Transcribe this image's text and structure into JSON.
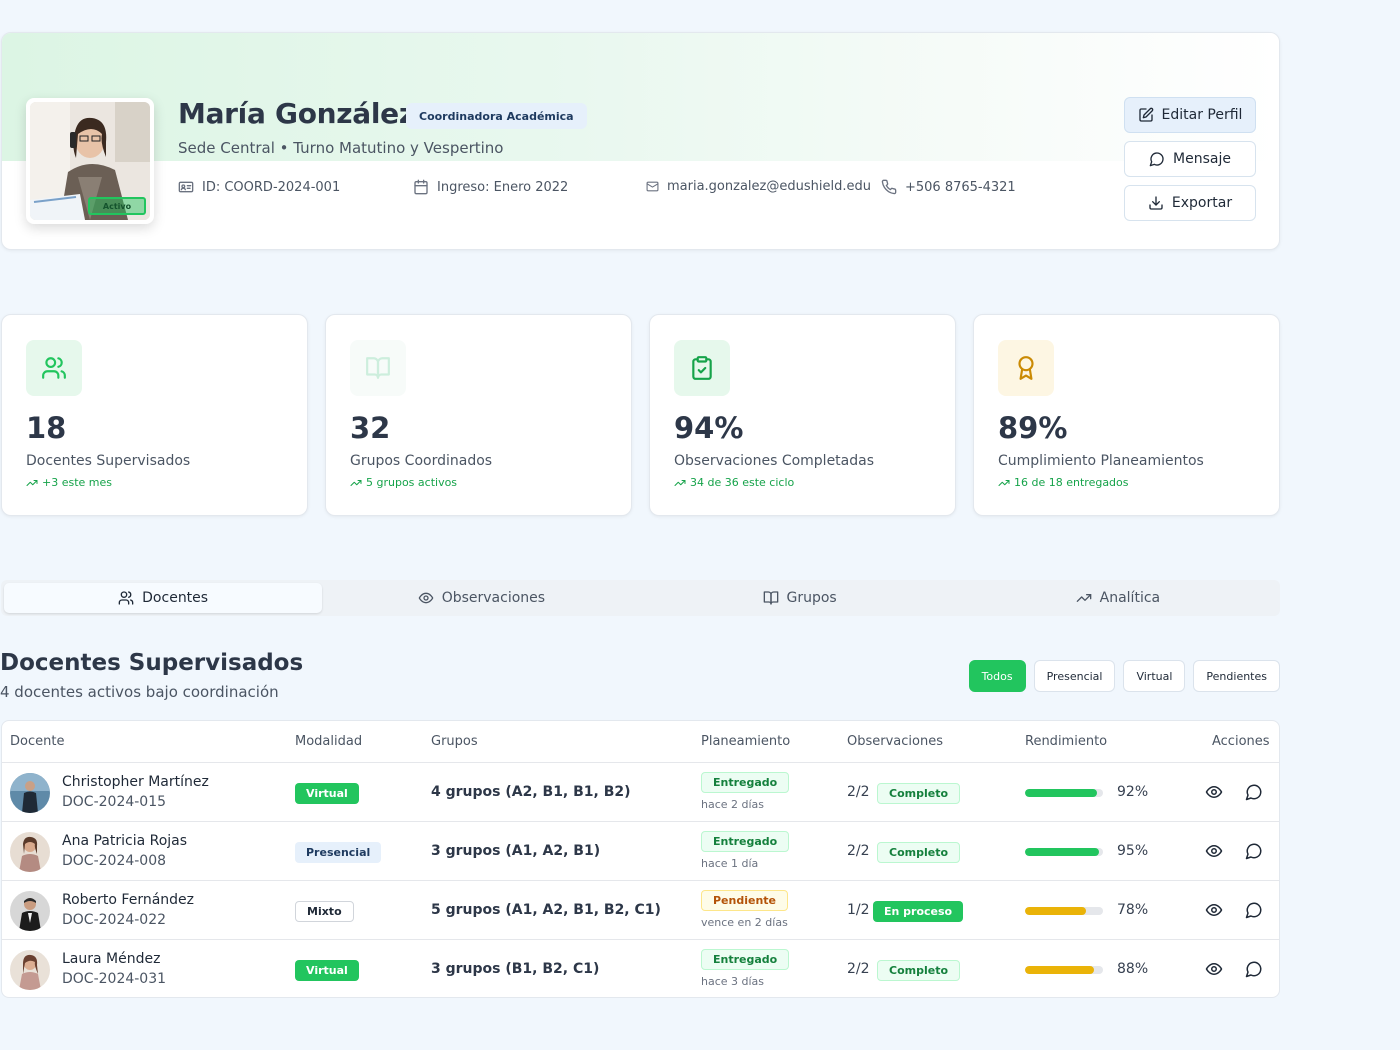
{
  "profile": {
    "name": "María González",
    "role": "Coordinadora Académica",
    "subtitle": "Sede Central • Turno Matutino y Vespertino",
    "id": "ID: COORD-2024-001",
    "ingreso": "Ingreso: Enero 2022",
    "email": "maria.gonzalez@edushield.edu",
    "phone": "+506 8765-4321",
    "status_badge": "Activo",
    "buttons": {
      "edit": "Editar Perfil",
      "message": "Mensaje",
      "export": "Exportar"
    }
  },
  "stats": [
    {
      "value": "18",
      "label": "Docentes Supervisados",
      "trend": "+3 este mes",
      "icon": "users-icon"
    },
    {
      "value": "32",
      "label": "Grupos Coordinados",
      "trend": "5 grupos activos",
      "icon": "book-open-icon"
    },
    {
      "value": "94%",
      "label": "Observaciones Completadas",
      "trend": "34 de 36 este ciclo",
      "icon": "clipboard-check-icon"
    },
    {
      "value": "89%",
      "label": "Cumplimiento Planeamientos",
      "trend": "16 de 18 entregados",
      "icon": "award-icon"
    }
  ],
  "tabs": [
    {
      "label": "Docentes",
      "active": true
    },
    {
      "label": "Observaciones",
      "active": false
    },
    {
      "label": "Grupos",
      "active": false
    },
    {
      "label": "Analítica",
      "active": false
    }
  ],
  "section": {
    "title": "Docentes Supervisados",
    "subtitle": "4 docentes activos bajo coordinación"
  },
  "filters": [
    "Todos",
    "Presencial",
    "Virtual",
    "Pendientes"
  ],
  "table": {
    "headers": [
      "Docente",
      "Modalidad",
      "Grupos",
      "Planeamiento",
      "Observaciones",
      "Rendimiento",
      "Acciones"
    ],
    "rows": [
      {
        "name": "Christopher Martínez",
        "code": "DOC-2024-015",
        "modalidad": "Virtual",
        "grupos": "4 grupos (A2, B1, B1, B2)",
        "plan": "Entregado",
        "plan_sub": "hace 2 días",
        "obs": "2/2",
        "obs_status": "Completo",
        "rendimiento": 92,
        "rend_label": "92%",
        "bar_color": "#22c55e"
      },
      {
        "name": "Ana Patricia Rojas",
        "code": "DOC-2024-008",
        "modalidad": "Presencial",
        "grupos": "3 grupos (A1, A2, B1)",
        "plan": "Entregado",
        "plan_sub": "hace 1 día",
        "obs": "2/2",
        "obs_status": "Completo",
        "rendimiento": 95,
        "rend_label": "95%",
        "bar_color": "#22c55e"
      },
      {
        "name": "Roberto Fernández",
        "code": "DOC-2024-022",
        "modalidad": "Mixto",
        "grupos": "5 grupos (A1, A2, B1, B2, C1)",
        "plan": "Pendiente",
        "plan_sub": "vence en 2 días",
        "obs": "1/2",
        "obs_status": "En proceso",
        "rendimiento": 78,
        "rend_label": "78%",
        "bar_color": "#eab308"
      },
      {
        "name": "Laura Méndez",
        "code": "DOC-2024-031",
        "modalidad": "Virtual",
        "grupos": "3 grupos (B1, B2, C1)",
        "plan": "Entregado",
        "plan_sub": "hace 3 días",
        "obs": "2/2",
        "obs_status": "Completo",
        "rendimiento": 88,
        "rend_label": "88%",
        "bar_color": "#eab308"
      }
    ]
  }
}
